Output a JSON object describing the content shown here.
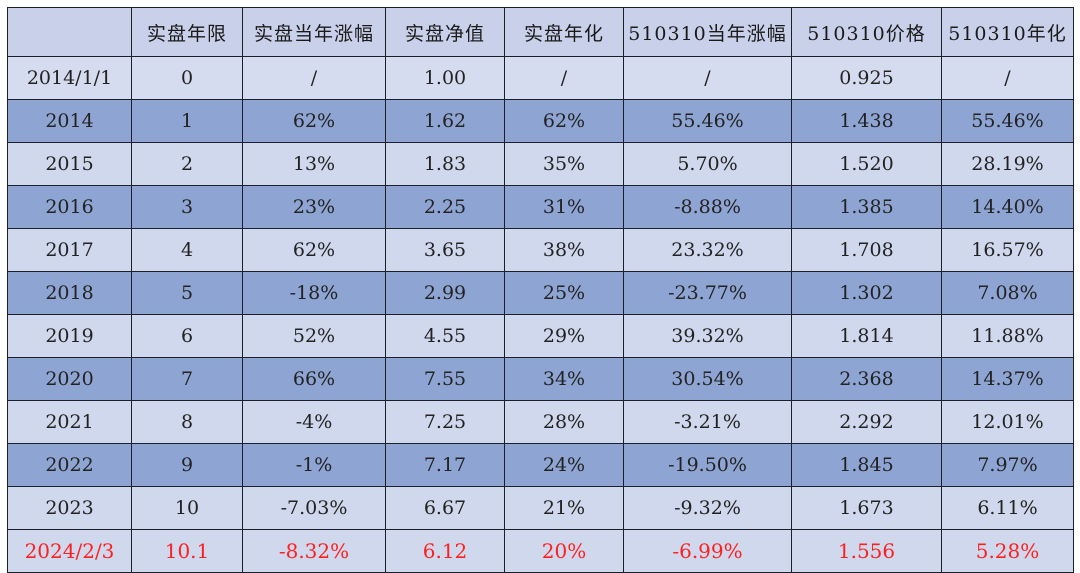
{
  "table": {
    "headers": [
      "",
      "实盘年限",
      "实盘当年涨幅",
      "实盘净值",
      "实盘年化",
      "510310当年涨幅",
      "510310价格",
      "510310年化"
    ],
    "rows": [
      [
        "2014/1/1",
        "0",
        "/",
        "1.00",
        "/",
        "/",
        "0.925",
        "/"
      ],
      [
        "2014",
        "1",
        "62%",
        "1.62",
        "62%",
        "55.46%",
        "1.438",
        "55.46%"
      ],
      [
        "2015",
        "2",
        "13%",
        "1.83",
        "35%",
        "5.70%",
        "1.520",
        "28.19%"
      ],
      [
        "2016",
        "3",
        "23%",
        "2.25",
        "31%",
        "-8.88%",
        "1.385",
        "14.40%"
      ],
      [
        "2017",
        "4",
        "62%",
        "3.65",
        "38%",
        "23.32%",
        "1.708",
        "16.57%"
      ],
      [
        "2018",
        "5",
        "-18%",
        "2.99",
        "25%",
        "-23.77%",
        "1.302",
        "7.08%"
      ],
      [
        "2019",
        "6",
        "52%",
        "4.55",
        "29%",
        "39.32%",
        "1.814",
        "11.88%"
      ],
      [
        "2020",
        "7",
        "66%",
        "7.55",
        "34%",
        "30.54%",
        "2.368",
        "14.37%"
      ],
      [
        "2021",
        "8",
        "-4%",
        "7.25",
        "28%",
        "-3.21%",
        "2.292",
        "12.01%"
      ],
      [
        "2022",
        "9",
        "-1%",
        "7.17",
        "24%",
        "-19.50%",
        "1.845",
        "7.97%"
      ],
      [
        "2023",
        "10",
        "-7.03%",
        "6.67",
        "21%",
        "-9.32%",
        "1.673",
        "6.11%"
      ],
      [
        "2024/2/3",
        "10.1",
        "-8.32%",
        "6.12",
        "20%",
        "-6.99%",
        "1.556",
        "5.28%"
      ]
    ]
  },
  "colors": {
    "header_bg": "#c9d1ea",
    "row_light": "#cfd8ec",
    "row_dark": "#8ea5d4",
    "highlight_text": "#ff1f1f",
    "border": "#1b1f2a"
  }
}
